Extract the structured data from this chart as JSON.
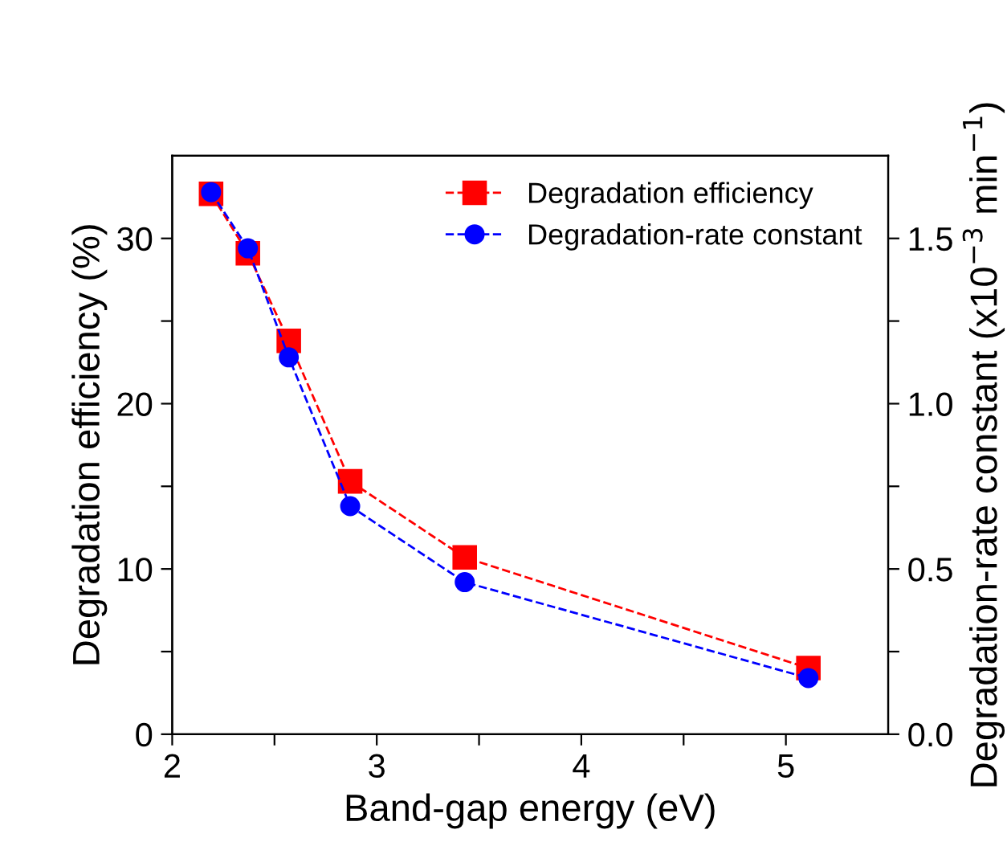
{
  "chart_data": {
    "type": "line",
    "xlabel": "Band-gap energy (eV)",
    "ylabel": "Degradation efficiency (%)",
    "y2label": "Degradation-rate constant (x10$^{−3}$ min$^{−1}$)",
    "x": [
      2.19,
      2.37,
      2.57,
      2.87,
      3.43,
      5.11
    ],
    "series": [
      {
        "name": "Degradation efficiency",
        "color": "#ff0000",
        "values": [
          32.7,
          29.1,
          23.8,
          15.3,
          10.7,
          4.0
        ],
        "marker": "square"
      },
      {
        "name": "Degradation-rate constant",
        "color": "#0000ff",
        "values": [
          1.64,
          1.47,
          1.14,
          0.69,
          0.46,
          0.17
        ],
        "marker": "circle",
        "axis": "y2"
      }
    ],
    "xlim": [
      2,
      5.5
    ],
    "xticks": [
      2,
      {
        "value": 2.5,
        "label": null
      },
      3,
      {
        "value": 3.5,
        "label": null
      },
      4,
      {
        "value": 4.5,
        "label": null
      },
      5
    ],
    "ylim": [
      0,
      35
    ],
    "yticks": [
      0,
      {
        "value": 5,
        "label": null
      },
      10,
      {
        "value": 15,
        "label": null
      },
      20,
      {
        "value": 25,
        "label": null
      },
      30
    ],
    "y2lim": [
      0,
      1.75
    ],
    "y2ticks": [
      {
        "value": 0,
        "label": "0.0"
      },
      {
        "value": 0.25,
        "label": null
      },
      {
        "value": 0.5,
        "label": "0.5"
      },
      {
        "value": 0.75,
        "label": null
      },
      {
        "value": 1.0,
        "label": "1.0"
      },
      {
        "value": 1.25,
        "label": null
      },
      {
        "value": 1.5,
        "label": "1.5"
      }
    ],
    "line_style": "dashed",
    "grid": false,
    "legend": "top right"
  }
}
